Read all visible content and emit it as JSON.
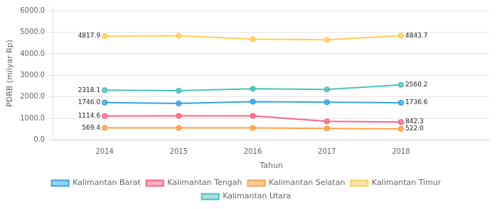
{
  "chart_data": {
    "type": "line",
    "x": [
      2014,
      2015,
      2016,
      2017,
      2018
    ],
    "series": [
      {
        "name": "Kalimantan Barat",
        "values": [
          1746.0,
          1700.0,
          1780.0,
          1760.0,
          1736.6
        ]
      },
      {
        "name": "Kalimantan Tengah",
        "values": [
          1114.6,
          1130.0,
          1130.0,
          870.0,
          842.3
        ]
      },
      {
        "name": "Kalimantan Selatan",
        "values": [
          569.4,
          570.0,
          570.0,
          540.0,
          522.0
        ]
      },
      {
        "name": "Kalimantan Timur",
        "values": [
          4817.9,
          4840.0,
          4680.0,
          4650.0,
          4843.7
        ]
      },
      {
        "name": "Kalimantan Utara",
        "values": [
          2318.1,
          2290.0,
          2380.0,
          2350.0,
          2560.2
        ]
      }
    ],
    "xlabel": "Tahun",
    "ylabel": "PDRB (milyar Rp)",
    "xlim": [
      2013.3,
      2019.2
    ],
    "xticks": [
      2014,
      2015,
      2016,
      2017,
      2018
    ],
    "ylim": [
      0,
      6200
    ],
    "yticks": [
      {
        "value": 0,
        "label": "0.0"
      },
      {
        "value": 1000,
        "label": "1000.0"
      },
      {
        "value": 2000,
        "label": "2000.0"
      },
      {
        "value": 3000,
        "label": "3000.0"
      },
      {
        "value": 4000,
        "label": "4000.0"
      },
      {
        "value": 5000,
        "label": "5000.0"
      },
      {
        "value": 6000,
        "label": "6000.0"
      }
    ],
    "grid": "y",
    "legend": "bottom",
    "marker": "circle",
    "annotations": [
      {
        "text": "1746.0",
        "x": 2014,
        "y": 1746.0
      },
      {
        "text": "1736.6",
        "x": 2018,
        "y": 1736.6
      },
      {
        "text": "1114.6",
        "x": 2014,
        "y": 1114.6
      },
      {
        "text": "842.3",
        "x": 2018,
        "y": 842.3
      },
      {
        "text": "569.4",
        "x": 2014,
        "y": 569.4
      },
      {
        "text": "522.0",
        "x": 2018,
        "y": 522.0
      },
      {
        "text": "4817.9",
        "x": 2014,
        "y": 4817.9
      },
      {
        "text": "4843.7",
        "x": 2018,
        "y": 4843.7
      },
      {
        "text": "2318.1",
        "x": 2014,
        "y": 2318.1
      },
      {
        "text": "2560.2",
        "x": 2018,
        "y": 2560.2
      }
    ]
  }
}
